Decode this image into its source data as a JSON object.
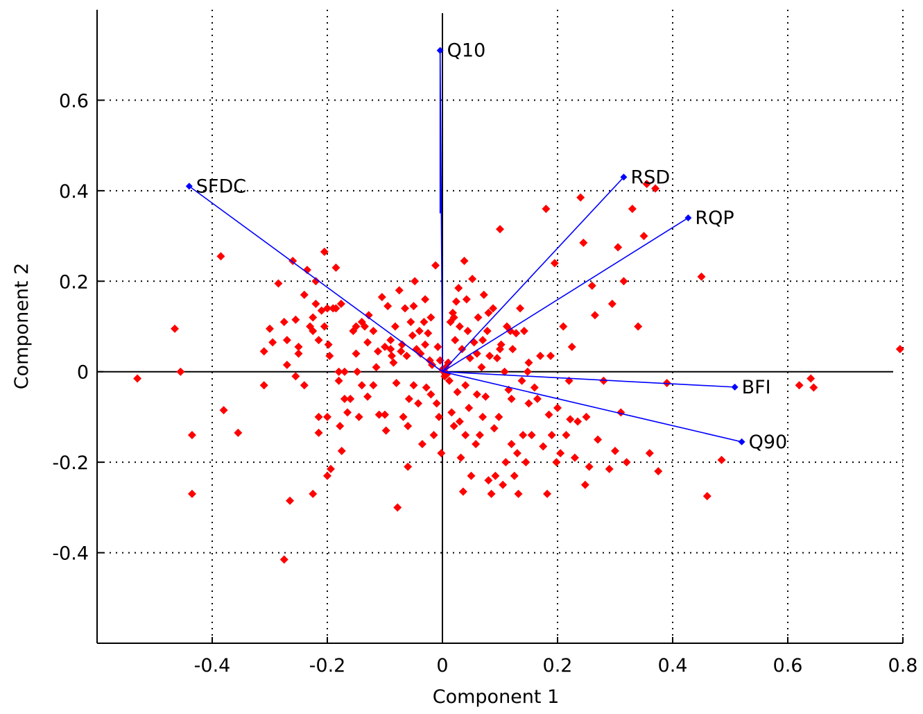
{
  "chart_data": {
    "type": "scatter",
    "title": "",
    "xlabel": "Component 1",
    "ylabel": "Component 2",
    "xlim": [
      -0.6,
      0.8
    ],
    "ylim": [
      -0.6,
      0.8
    ],
    "x_ticks": [
      -0.4,
      -0.2,
      0,
      0.2,
      0.4,
      0.6,
      0.8
    ],
    "x_tick_labels": [
      "-0.4",
      "-0.2",
      "0",
      "0.2",
      "0.4",
      "0.6",
      "0.8"
    ],
    "y_ticks": [
      -0.4,
      -0.2,
      0,
      0.2,
      0.4,
      0.6
    ],
    "y_tick_labels": [
      "-0.4",
      "-0.2",
      "0",
      "0.2",
      "0.4",
      "0.6"
    ],
    "grid": true,
    "colors": {
      "vectors": "#0000ff",
      "scores": "#ff0000",
      "axes": "#000000"
    },
    "vectors": [
      {
        "label": "Q10",
        "x": -0.004,
        "y": 0.71
      },
      {
        "label": "SFDC",
        "x": -0.44,
        "y": 0.41
      },
      {
        "label": "RSD",
        "x": 0.315,
        "y": 0.43
      },
      {
        "label": "RQP",
        "x": 0.427,
        "y": 0.34
      },
      {
        "label": "BFI",
        "x": 0.508,
        "y": -0.034
      },
      {
        "label": "Q90",
        "x": 0.52,
        "y": -0.155
      }
    ],
    "scores": [
      [
        -0.53,
        -0.015
      ],
      [
        -0.465,
        0.095
      ],
      [
        -0.455,
        0.0
      ],
      [
        -0.435,
        -0.14
      ],
      [
        -0.435,
        -0.27
      ],
      [
        -0.385,
        0.255
      ],
      [
        -0.38,
        -0.085
      ],
      [
        -0.355,
        -0.135
      ],
      [
        -0.31,
        0.045
      ],
      [
        -0.31,
        -0.03
      ],
      [
        -0.3,
        0.095
      ],
      [
        -0.295,
        0.065
      ],
      [
        -0.285,
        0.195
      ],
      [
        -0.275,
        0.11
      ],
      [
        -0.275,
        -0.415
      ],
      [
        -0.27,
        0.07
      ],
      [
        -0.27,
        0.015
      ],
      [
        -0.265,
        -0.285
      ],
      [
        -0.26,
        0.245
      ],
      [
        -0.255,
        0.115
      ],
      [
        -0.255,
        -0.01
      ],
      [
        -0.25,
        0.04
      ],
      [
        -0.25,
        0.055
      ],
      [
        -0.24,
        -0.03
      ],
      [
        -0.24,
        0.17
      ],
      [
        -0.235,
        0.225
      ],
      [
        -0.23,
        0.1
      ],
      [
        -0.225,
        0.09
      ],
      [
        -0.225,
        0.12
      ],
      [
        -0.225,
        -0.27
      ],
      [
        -0.22,
        0.2
      ],
      [
        -0.22,
        0.15
      ],
      [
        -0.215,
        0.07
      ],
      [
        -0.215,
        -0.1
      ],
      [
        -0.215,
        -0.135
      ],
      [
        -0.21,
        0.135
      ],
      [
        -0.205,
        0.1
      ],
      [
        -0.205,
        0.265
      ],
      [
        -0.2,
        0.14
      ],
      [
        -0.2,
        -0.1
      ],
      [
        -0.2,
        -0.23
      ],
      [
        -0.198,
        0.06
      ],
      [
        -0.196,
        0.035
      ],
      [
        -0.194,
        -0.215
      ],
      [
        -0.19,
        0.14
      ],
      [
        -0.185,
        0.14
      ],
      [
        -0.185,
        0.23
      ],
      [
        -0.18,
        0.0
      ],
      [
        -0.18,
        -0.02
      ],
      [
        -0.178,
        -0.12
      ],
      [
        -0.176,
        0.15
      ],
      [
        -0.175,
        -0.175
      ],
      [
        -0.17,
        -0.06
      ],
      [
        -0.17,
        0.0
      ],
      [
        -0.165,
        -0.09
      ],
      [
        -0.16,
        -0.06
      ],
      [
        -0.155,
        0.09
      ],
      [
        -0.15,
        0.04
      ],
      [
        -0.148,
        0.0
      ],
      [
        -0.145,
        -0.1
      ],
      [
        -0.14,
        0.11
      ],
      [
        -0.14,
        -0.03
      ],
      [
        -0.135,
        0.1
      ],
      [
        -0.13,
        0.065
      ],
      [
        -0.13,
        -0.055
      ],
      [
        -0.128,
        0.125
      ],
      [
        -0.12,
        0.09
      ],
      [
        -0.115,
        0.01
      ],
      [
        -0.112,
        0.045
      ],
      [
        -0.11,
        -0.095
      ],
      [
        -0.105,
        0.165
      ],
      [
        -0.1,
        0.055
      ],
      [
        -0.1,
        -0.095
      ],
      [
        -0.098,
        -0.13
      ],
      [
        -0.095,
        0.145
      ],
      [
        -0.09,
        0.05
      ],
      [
        -0.088,
        0.035
      ],
      [
        -0.085,
        0.02
      ],
      [
        -0.082,
        0.1
      ],
      [
        -0.08,
        -0.025
      ],
      [
        -0.078,
        -0.3
      ],
      [
        -0.075,
        0.18
      ],
      [
        -0.072,
        0.045
      ],
      [
        -0.07,
        0.06
      ],
      [
        -0.068,
        -0.1
      ],
      [
        -0.065,
        0.14
      ],
      [
        -0.062,
        0.035
      ],
      [
        -0.06,
        -0.21
      ],
      [
        -0.058,
        -0.06
      ],
      [
        -0.055,
        0.11
      ],
      [
        -0.052,
        0.08
      ],
      [
        -0.05,
        -0.03
      ],
      [
        -0.048,
        0.2
      ],
      [
        -0.045,
        0.05
      ],
      [
        -0.042,
        -0.07
      ],
      [
        -0.04,
        0.09
      ],
      [
        -0.038,
        0.04
      ],
      [
        -0.035,
        -0.16
      ],
      [
        -0.032,
        0.11
      ],
      [
        -0.03,
        0.06
      ],
      [
        -0.028,
        -0.035
      ],
      [
        -0.025,
        0.085
      ],
      [
        -0.022,
        0.025
      ],
      [
        -0.02,
        0.12
      ],
      [
        -0.018,
        0.015
      ],
      [
        -0.015,
        -0.14
      ],
      [
        -0.012,
        0.235
      ],
      [
        -0.01,
        -0.07
      ],
      [
        -0.008,
        0.055
      ],
      [
        -0.006,
        -0.1
      ],
      [
        -0.004,
        0.025
      ],
      [
        -0.002,
        -0.18
      ],
      [
        0.0,
        0.005
      ],
      [
        0.002,
        0.0
      ],
      [
        0.004,
        -0.01
      ],
      [
        0.006,
        0.01
      ],
      [
        0.008,
        -0.005
      ],
      [
        0.01,
        0.02
      ],
      [
        0.012,
        -0.02
      ],
      [
        0.014,
        0.11
      ],
      [
        0.016,
        -0.09
      ],
      [
        0.018,
        0.13
      ],
      [
        0.02,
        -0.12
      ],
      [
        0.022,
        0.07
      ],
      [
        0.024,
        0.155
      ],
      [
        0.026,
        -0.045
      ],
      [
        0.028,
        0.185
      ],
      [
        0.03,
        0.1
      ],
      [
        0.032,
        -0.19
      ],
      [
        0.034,
        0.05
      ],
      [
        0.036,
        -0.265
      ],
      [
        0.038,
        0.245
      ],
      [
        0.04,
        -0.14
      ],
      [
        0.042,
        0.16
      ],
      [
        0.044,
        0.09
      ],
      [
        0.046,
        -0.08
      ],
      [
        0.048,
        0.03
      ],
      [
        0.05,
        -0.23
      ],
      [
        0.052,
        0.205
      ],
      [
        0.055,
        0.065
      ],
      [
        0.058,
        -0.16
      ],
      [
        0.06,
        -0.05
      ],
      [
        0.062,
        0.12
      ],
      [
        0.065,
        -0.14
      ],
      [
        0.068,
        0.01
      ],
      [
        0.07,
        -0.1
      ],
      [
        0.072,
        0.17
      ],
      [
        0.075,
        -0.055
      ],
      [
        0.078,
        0.09
      ],
      [
        0.08,
        -0.24
      ],
      [
        0.082,
        0.035
      ],
      [
        0.085,
        -0.27
      ],
      [
        0.088,
        0.14
      ],
      [
        0.09,
        -0.125
      ],
      [
        0.092,
        -0.23
      ],
      [
        0.095,
        0.03
      ],
      [
        0.098,
        -0.1
      ],
      [
        0.1,
        0.315
      ],
      [
        0.102,
        0.06
      ],
      [
        0.105,
        -0.25
      ],
      [
        0.108,
        0.0
      ],
      [
        0.11,
        -0.2
      ],
      [
        0.112,
        0.1
      ],
      [
        0.115,
        -0.04
      ],
      [
        0.118,
        0.09
      ],
      [
        0.12,
        -0.16
      ],
      [
        0.122,
        0.05
      ],
      [
        0.125,
        -0.23
      ],
      [
        0.128,
        0.085
      ],
      [
        0.13,
        -0.18
      ],
      [
        0.132,
        -0.27
      ],
      [
        0.135,
        0.14
      ],
      [
        0.138,
        -0.02
      ],
      [
        0.14,
        -0.14
      ],
      [
        0.142,
        0.09
      ],
      [
        0.145,
        -0.2
      ],
      [
        0.148,
        0.0
      ],
      [
        0.15,
        -0.07
      ],
      [
        0.155,
        -0.14
      ],
      [
        0.16,
        -0.035
      ],
      [
        0.165,
        -0.06
      ],
      [
        0.17,
        0.035
      ],
      [
        0.175,
        -0.165
      ],
      [
        0.18,
        0.36
      ],
      [
        0.182,
        -0.27
      ],
      [
        0.185,
        -0.095
      ],
      [
        0.188,
        0.035
      ],
      [
        0.19,
        -0.14
      ],
      [
        0.195,
        0.24
      ],
      [
        0.198,
        -0.2
      ],
      [
        0.2,
        -0.08
      ],
      [
        0.205,
        -0.18
      ],
      [
        0.21,
        0.1
      ],
      [
        0.215,
        -0.14
      ],
      [
        0.22,
        -0.02
      ],
      [
        0.222,
        -0.105
      ],
      [
        0.225,
        0.055
      ],
      [
        0.23,
        -0.19
      ],
      [
        0.235,
        -0.11
      ],
      [
        0.24,
        0.385
      ],
      [
        0.245,
        0.285
      ],
      [
        0.248,
        -0.25
      ],
      [
        0.25,
        -0.1
      ],
      [
        0.255,
        -0.21
      ],
      [
        0.26,
        0.19
      ],
      [
        0.265,
        0.125
      ],
      [
        0.27,
        -0.15
      ],
      [
        0.28,
        -0.02
      ],
      [
        0.29,
        -0.215
      ],
      [
        0.295,
        0.15
      ],
      [
        0.3,
        -0.175
      ],
      [
        0.305,
        0.275
      ],
      [
        0.31,
        -0.09
      ],
      [
        0.315,
        0.2
      ],
      [
        0.32,
        -0.2
      ],
      [
        0.33,
        0.36
      ],
      [
        0.34,
        0.1
      ],
      [
        0.35,
        0.3
      ],
      [
        0.355,
        0.415
      ],
      [
        0.36,
        -0.18
      ],
      [
        0.37,
        0.405
      ],
      [
        0.375,
        -0.22
      ],
      [
        0.39,
        -0.025
      ],
      [
        0.45,
        0.21
      ],
      [
        0.46,
        -0.275
      ],
      [
        0.485,
        -0.195
      ],
      [
        0.62,
        -0.03
      ],
      [
        0.64,
        -0.015
      ],
      [
        0.645,
        -0.035
      ],
      [
        0.795,
        0.05
      ],
      [
        -0.05,
        0.145
      ],
      [
        0.02,
        0.12
      ],
      [
        0.06,
        0.04
      ],
      [
        -0.02,
        -0.05
      ],
      [
        0.04,
        -0.03
      ],
      [
        0.1,
        0.05
      ],
      [
        -0.15,
        0.1
      ],
      [
        -0.12,
        -0.03
      ],
      [
        0.15,
        0.02
      ],
      [
        -0.06,
        -0.12
      ],
      [
        0.08,
        0.13
      ],
      [
        -0.09,
        0.07
      ],
      [
        0.12,
        -0.06
      ],
      [
        -0.03,
        0.16
      ],
      [
        0.03,
        -0.11
      ],
      [
        0.07,
        0.07
      ]
    ]
  }
}
